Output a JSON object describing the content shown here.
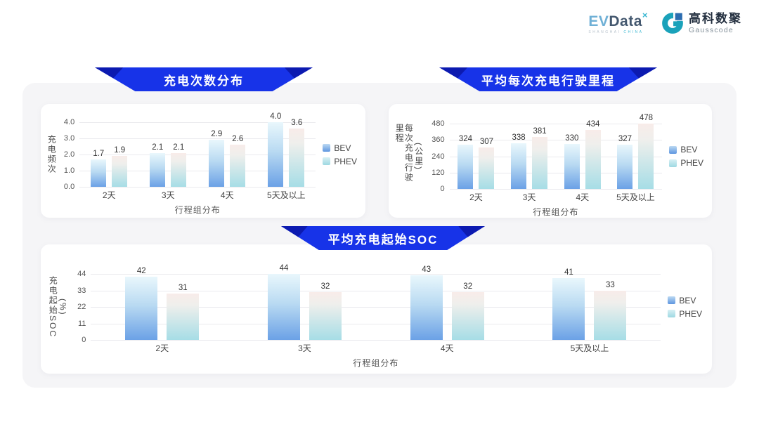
{
  "header": {
    "evdata_logo": {
      "ev": "EV",
      "data": "Data",
      "sup": "×",
      "subtext_left": "SHANGHAI ",
      "subtext_right": "CHINA"
    },
    "gausscode_logo": {
      "cn": "高科数聚",
      "en": "Gausscode"
    }
  },
  "colors": {
    "banner_blue": "#1733e8",
    "banner_tip_navy": "#0c1ab0",
    "container_gray": "#f5f5f7",
    "bev_gradient_top": "#e9f7fc",
    "bev_gradient_bottom": "#6ba1e6",
    "phev_gradient_top": "#f8ece9",
    "phev_gradient_bottom": "#a6dde6",
    "gridline": "#eaeaee"
  },
  "legend": {
    "bev": "BEV",
    "phev": "PHEV"
  },
  "chart_data": [
    {
      "type": "bar",
      "title": "充电次数分布",
      "xlabel": "行程组分布",
      "ylabel": "充电频次",
      "ylabel_unit": "",
      "categories": [
        "2天",
        "3天",
        "4天",
        "5天及以上"
      ],
      "series": [
        {
          "name": "BEV",
          "values": [
            1.7,
            2.1,
            2.9,
            4.0
          ],
          "labels": [
            "1.7",
            "2.1",
            "2.9",
            "4.0"
          ]
        },
        {
          "name": "PHEV",
          "values": [
            1.9,
            2.1,
            2.6,
            3.6
          ],
          "labels": [
            "1.9",
            "2.1",
            "2.6",
            "3.6"
          ]
        }
      ],
      "ylim": [
        0,
        4
      ],
      "ytick_labels": [
        "4.0",
        "3.0",
        "2.0",
        "1.0",
        "0.0"
      ],
      "grid": true,
      "legend_position": "right"
    },
    {
      "type": "bar",
      "title": "平均每次充电行驶里程",
      "xlabel": "行程组分布",
      "ylabel": "每次充电行驶里程",
      "ylabel_unit": "(公里)",
      "categories": [
        "2天",
        "3天",
        "4天",
        "5天及以上"
      ],
      "series": [
        {
          "name": "BEV",
          "values": [
            324,
            338,
            330,
            327
          ],
          "labels": [
            "324",
            "338",
            "330",
            "327"
          ]
        },
        {
          "name": "PHEV",
          "values": [
            307,
            381,
            434,
            478
          ],
          "labels": [
            "307",
            "381",
            "434",
            "478"
          ]
        }
      ],
      "ylim": [
        0,
        480
      ],
      "ytick_labels": [
        "480",
        "360",
        "240",
        "120",
        "0"
      ],
      "grid": true,
      "legend_position": "right"
    },
    {
      "type": "bar",
      "title": "平均充电起始SOC",
      "xlabel": "行程组分布",
      "ylabel": "充电起始SOC",
      "ylabel_unit": "(%)",
      "categories": [
        "2天",
        "3天",
        "4天",
        "5天及以上"
      ],
      "series": [
        {
          "name": "BEV",
          "values": [
            42,
            44,
            43,
            41
          ],
          "labels": [
            "42",
            "44",
            "43",
            "41"
          ]
        },
        {
          "name": "PHEV",
          "values": [
            31,
            32,
            32,
            33
          ],
          "labels": [
            "31",
            "32",
            "32",
            "33"
          ]
        }
      ],
      "ylim": [
        0,
        44
      ],
      "ytick_labels": [
        "44",
        "33",
        "22",
        "11",
        "0"
      ],
      "grid": true,
      "legend_position": "right"
    }
  ]
}
